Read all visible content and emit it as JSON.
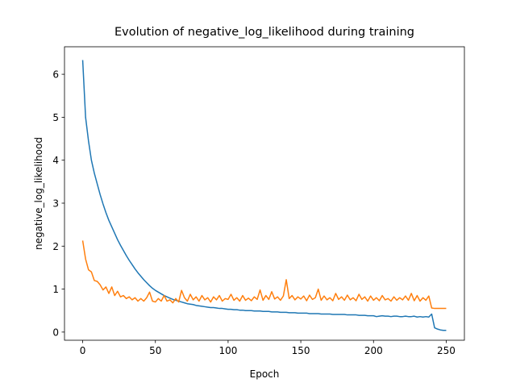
{
  "chart_data": {
    "type": "line",
    "title": "Evolution of negative_log_likelihood during training",
    "xlabel": "Epoch",
    "ylabel": "negative_log_likelihood",
    "x": [
      0,
      2,
      4,
      6,
      8,
      10,
      12,
      14,
      16,
      18,
      20,
      22,
      24,
      26,
      28,
      30,
      32,
      34,
      36,
      38,
      40,
      42,
      44,
      46,
      48,
      50,
      52,
      54,
      56,
      58,
      60,
      62,
      64,
      66,
      68,
      70,
      72,
      74,
      76,
      78,
      80,
      82,
      84,
      86,
      88,
      90,
      92,
      94,
      96,
      98,
      100,
      102,
      104,
      106,
      108,
      110,
      112,
      114,
      116,
      118,
      120,
      122,
      124,
      126,
      128,
      130,
      132,
      134,
      136,
      138,
      140,
      142,
      144,
      146,
      148,
      150,
      152,
      154,
      156,
      158,
      160,
      162,
      164,
      166,
      168,
      170,
      172,
      174,
      176,
      178,
      180,
      182,
      184,
      186,
      188,
      190,
      192,
      194,
      196,
      198,
      200,
      202,
      204,
      206,
      208,
      210,
      212,
      214,
      216,
      218,
      220,
      222,
      224,
      226,
      228,
      230,
      232,
      234,
      236,
      238,
      240,
      242,
      244,
      246,
      248,
      250
    ],
    "series": [
      {
        "color": "#1f77b4",
        "values": [
          6.33,
          5.0,
          4.45,
          4.0,
          3.7,
          3.45,
          3.2,
          2.98,
          2.78,
          2.6,
          2.45,
          2.3,
          2.15,
          2.02,
          1.9,
          1.78,
          1.67,
          1.57,
          1.47,
          1.38,
          1.3,
          1.22,
          1.15,
          1.08,
          1.02,
          0.97,
          0.93,
          0.89,
          0.85,
          0.82,
          0.79,
          0.76,
          0.74,
          0.72,
          0.7,
          0.68,
          0.66,
          0.65,
          0.64,
          0.62,
          0.61,
          0.6,
          0.59,
          0.58,
          0.57,
          0.57,
          0.56,
          0.55,
          0.55,
          0.54,
          0.53,
          0.53,
          0.52,
          0.52,
          0.51,
          0.51,
          0.5,
          0.5,
          0.5,
          0.49,
          0.49,
          0.49,
          0.48,
          0.48,
          0.48,
          0.47,
          0.47,
          0.47,
          0.46,
          0.46,
          0.46,
          0.45,
          0.45,
          0.45,
          0.44,
          0.44,
          0.44,
          0.44,
          0.43,
          0.43,
          0.43,
          0.43,
          0.42,
          0.42,
          0.42,
          0.42,
          0.41,
          0.41,
          0.41,
          0.41,
          0.41,
          0.4,
          0.4,
          0.4,
          0.4,
          0.39,
          0.39,
          0.39,
          0.38,
          0.38,
          0.38,
          0.36,
          0.37,
          0.38,
          0.37,
          0.37,
          0.36,
          0.37,
          0.37,
          0.36,
          0.36,
          0.37,
          0.36,
          0.36,
          0.37,
          0.35,
          0.36,
          0.35,
          0.36,
          0.35,
          0.42,
          0.1,
          0.07,
          0.05,
          0.04,
          0.04
        ]
      },
      {
        "color": "#ff7f0e",
        "values": [
          2.13,
          1.7,
          1.45,
          1.4,
          1.2,
          1.18,
          1.1,
          0.98,
          1.05,
          0.9,
          1.05,
          0.85,
          0.95,
          0.82,
          0.85,
          0.78,
          0.82,
          0.75,
          0.8,
          0.72,
          0.78,
          0.72,
          0.8,
          0.93,
          0.72,
          0.7,
          0.78,
          0.72,
          0.85,
          0.72,
          0.75,
          0.68,
          0.78,
          0.7,
          0.97,
          0.8,
          0.72,
          0.88,
          0.75,
          0.82,
          0.72,
          0.85,
          0.75,
          0.8,
          0.7,
          0.82,
          0.75,
          0.85,
          0.72,
          0.78,
          0.76,
          0.88,
          0.74,
          0.8,
          0.72,
          0.85,
          0.74,
          0.79,
          0.73,
          0.82,
          0.76,
          0.98,
          0.74,
          0.85,
          0.76,
          0.94,
          0.77,
          0.82,
          0.74,
          0.84,
          1.22,
          0.78,
          0.85,
          0.75,
          0.82,
          0.77,
          0.84,
          0.73,
          0.86,
          0.76,
          0.8,
          1.0,
          0.74,
          0.84,
          0.75,
          0.8,
          0.73,
          0.9,
          0.76,
          0.82,
          0.74,
          0.86,
          0.75,
          0.8,
          0.73,
          0.88,
          0.76,
          0.82,
          0.72,
          0.84,
          0.74,
          0.8,
          0.73,
          0.85,
          0.75,
          0.78,
          0.72,
          0.82,
          0.74,
          0.8,
          0.75,
          0.84,
          0.74,
          0.9,
          0.73,
          0.85,
          0.72,
          0.8,
          0.74,
          0.84,
          0.56,
          0.55,
          0.55,
          0.55,
          0.55,
          0.55
        ]
      }
    ],
    "xlim": [
      -12.5,
      262.5
    ],
    "xticks": [
      0,
      50,
      100,
      150,
      200,
      250
    ],
    "ylim": [
      -0.19,
      6.64
    ],
    "yticks": [
      0,
      1,
      2,
      3,
      4,
      5,
      6
    ]
  }
}
